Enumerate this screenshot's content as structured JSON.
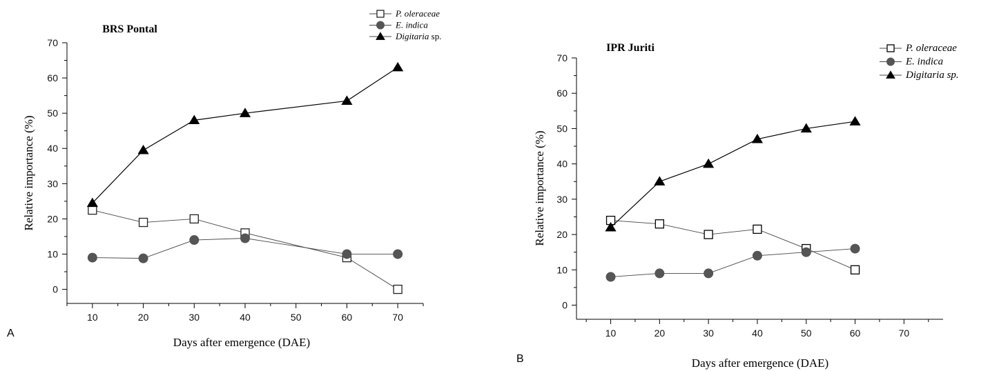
{
  "chart_data": [
    {
      "panel_letter": "A",
      "type": "line",
      "title": "BRS Pontal",
      "xlabel": "Days after emergence (DAE)",
      "ylabel": "Relative importance (%)",
      "xlim": [
        5,
        75
      ],
      "ylim": [
        -4,
        70
      ],
      "xticks": [
        10,
        20,
        30,
        40,
        50,
        60,
        70
      ],
      "yticks": [
        0,
        10,
        20,
        30,
        40,
        50,
        60,
        70
      ],
      "series": [
        {
          "name": "P. oleraceae",
          "name_italic_part": "P. oleraceae",
          "name_suffix": "",
          "marker": "square-open",
          "color": "#222222",
          "x": [
            10,
            20,
            30,
            40,
            60,
            70
          ],
          "y": [
            22.5,
            19,
            20,
            16,
            9,
            0
          ]
        },
        {
          "name": "E. indica",
          "name_italic_part": "E. indica",
          "name_suffix": "",
          "marker": "circle",
          "color": "#555555",
          "x": [
            10,
            20,
            30,
            40,
            60,
            70
          ],
          "y": [
            9,
            8.8,
            14,
            14.5,
            10,
            10
          ]
        },
        {
          "name": "Digitaria sp.",
          "name_italic_part": "Digitaria",
          "name_suffix": " sp.",
          "marker": "triangle",
          "color": "#000000",
          "x": [
            10,
            20,
            30,
            40,
            60,
            70
          ],
          "y": [
            24.5,
            39.5,
            48,
            50,
            53.5,
            63
          ]
        }
      ],
      "legend": "top-right",
      "grid": false
    },
    {
      "panel_letter": "B",
      "type": "line",
      "title": "IPR Juriti",
      "xlabel": "Days after emergence (DAE)",
      "ylabel": "Relative importance (%)",
      "xlim": [
        3,
        78
      ],
      "ylim": [
        -4,
        70
      ],
      "xticks": [
        10,
        20,
        30,
        40,
        50,
        60,
        70
      ],
      "yticks": [
        0,
        10,
        20,
        30,
        40,
        50,
        60,
        70
      ],
      "series": [
        {
          "name": "P. oleraceae",
          "name_italic_part": "P. oleraceae",
          "name_suffix": "",
          "marker": "square-open",
          "color": "#000000",
          "x": [
            10,
            20,
            30,
            40,
            50,
            60
          ],
          "y": [
            24,
            23,
            20,
            21.5,
            16,
            10
          ]
        },
        {
          "name": "E. indica",
          "name_italic_part": "E. indica",
          "name_suffix": "",
          "marker": "circle",
          "color": "#555555",
          "x": [
            10,
            20,
            30,
            40,
            50,
            60
          ],
          "y": [
            8,
            9,
            9,
            14,
            15,
            16
          ]
        },
        {
          "name": "Digitaria sp.",
          "name_italic_part": "Digitaria sp.",
          "name_suffix": "",
          "marker": "triangle",
          "color": "#000000",
          "x": [
            10,
            20,
            30,
            40,
            50,
            60
          ],
          "y": [
            22,
            35,
            40,
            47,
            50,
            52
          ]
        }
      ],
      "legend": "top-right",
      "grid": false
    }
  ]
}
